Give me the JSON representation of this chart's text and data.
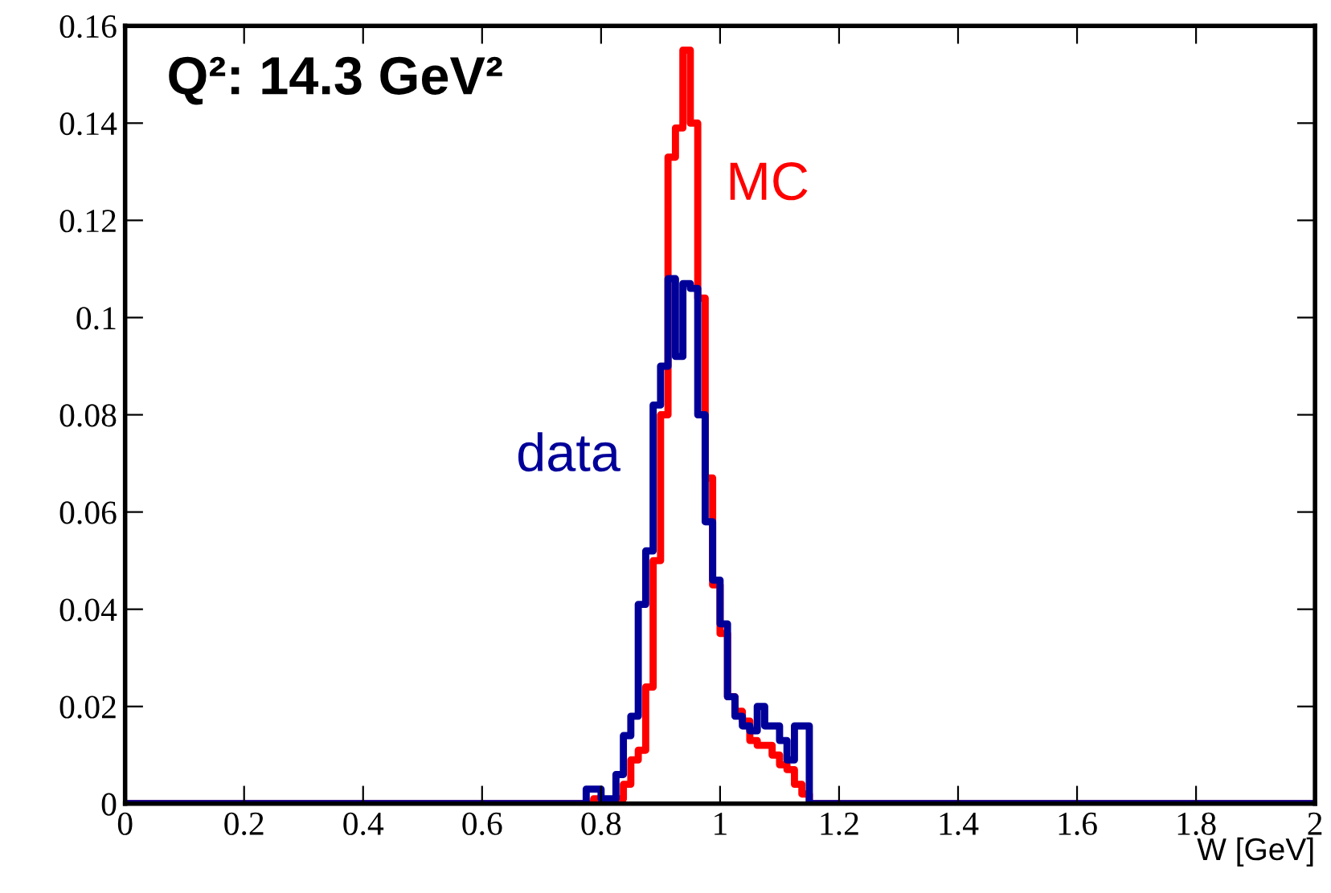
{
  "chart_data": {
    "type": "histogram",
    "annotations": [
      "Q²: 14.3 GeV²"
    ],
    "xlabel": "W [GeV]",
    "bins": [
      0,
      0.775,
      0.7875,
      0.8,
      0.8125,
      0.825,
      0.8375,
      0.85,
      0.8625,
      0.875,
      0.8875,
      0.9,
      0.9125,
      0.925,
      0.9375,
      0.95,
      0.9625,
      0.975,
      0.9875,
      1.0,
      1.0125,
      1.025,
      1.0375,
      1.05,
      1.0625,
      1.075,
      1.0875,
      1.1,
      1.1125,
      1.125,
      1.1375,
      1.15,
      2
    ],
    "series": [
      {
        "name": "MC",
        "color": "#ff0000",
        "values": [
          0,
          0,
          0.001,
          0,
          0,
          0.001,
          0.004,
          0.009,
          0.011,
          0.024,
          0.05,
          0.08,
          0.133,
          0.139,
          0.155,
          0.14,
          0.104,
          0.067,
          0.045,
          0.035,
          0.022,
          0.019,
          0.017,
          0.013,
          0.012,
          0.012,
          0.01,
          0.008,
          0.007,
          0.004,
          0.002,
          0
        ]
      },
      {
        "name": "data",
        "color": "#000099",
        "values": [
          0,
          0.003,
          0.003,
          0.001,
          0.001,
          0.006,
          0.014,
          0.018,
          0.041,
          0.052,
          0.082,
          0.09,
          0.108,
          0.092,
          0.107,
          0.106,
          0.08,
          0.058,
          0.046,
          0.037,
          0.022,
          0.018,
          0.016,
          0.015,
          0.02,
          0.016,
          0.016,
          0.013,
          0.009,
          0.016,
          0.016,
          0
        ]
      }
    ],
    "xlim": [
      0,
      2
    ],
    "ylim": [
      0,
      0.16
    ],
    "xticks": [
      0,
      0.2,
      0.4,
      0.6,
      0.8,
      1,
      1.2,
      1.4,
      1.6,
      1.8,
      2
    ],
    "yticks": [
      0,
      0.02,
      0.04,
      0.06,
      0.08,
      0.1,
      0.12,
      0.14,
      0.16
    ],
    "grid": false,
    "legend": false
  }
}
